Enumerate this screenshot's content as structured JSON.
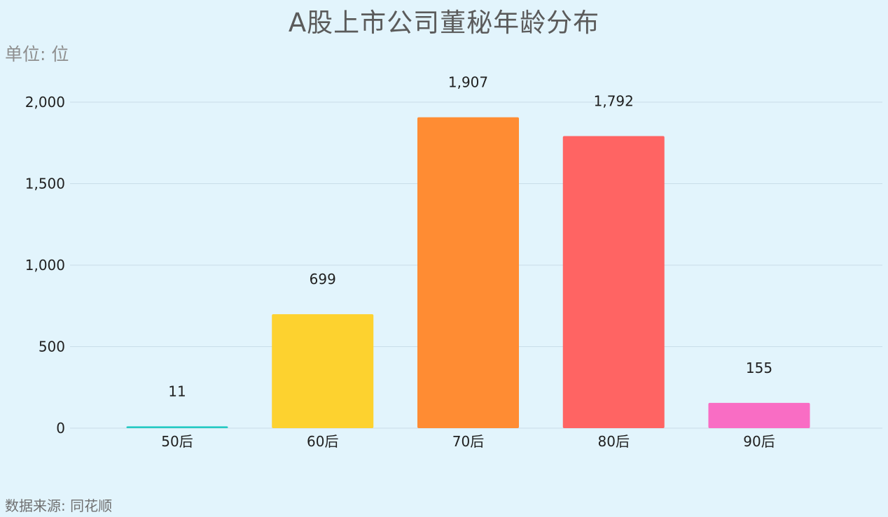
{
  "chart_data": {
    "type": "bar",
    "title": "A股上市公司董秘年龄分布",
    "unit": "单位: 位",
    "source": "数据来源: 同花顺",
    "categories": [
      "50后",
      "60后",
      "70后",
      "80后",
      "90后"
    ],
    "values": [
      11,
      699,
      1907,
      1792,
      155
    ],
    "value_labels": [
      "11",
      "699",
      "1,907",
      "1,792",
      "155"
    ],
    "colors": [
      "#26c9c3",
      "#fdd22f",
      "#ff8c33",
      "#ff6463",
      "#f96dc4"
    ],
    "yticks": [
      0,
      500,
      1000,
      1500,
      2000
    ],
    "ytick_labels": [
      "0",
      "500",
      "1,000",
      "1,500",
      "2,000"
    ],
    "ylim": [
      0,
      2000
    ],
    "grid": true,
    "legend": "none"
  }
}
